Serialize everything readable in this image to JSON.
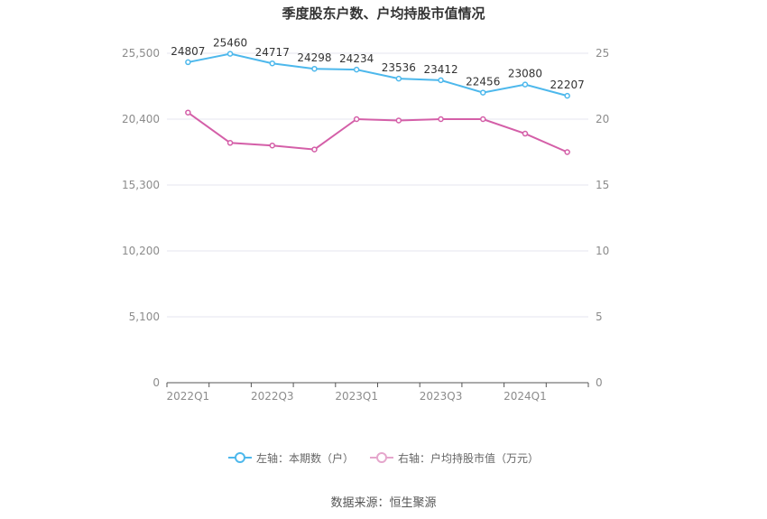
{
  "chart_data": {
    "type": "line",
    "title": "季度股东户数、户均持股市值情况",
    "categories": [
      "2022Q1",
      "2022Q2",
      "2022Q3",
      "2022Q4",
      "2023Q1",
      "2023Q2",
      "2023Q3",
      "2023Q4",
      "2024Q1",
      "2024Q2"
    ],
    "x_tick_labels": [
      "2022Q1",
      "2022Q3",
      "2023Q1",
      "2023Q3",
      "2024Q1"
    ],
    "left_axis": {
      "ticks": [
        "0",
        "5,100",
        "10,200",
        "15,300",
        "20,400",
        "25,500"
      ],
      "ylim": [
        0,
        25500
      ]
    },
    "right_axis": {
      "ticks": [
        "0",
        "5",
        "10",
        "15",
        "20",
        "25"
      ],
      "ylim": [
        0,
        25
      ]
    },
    "series": [
      {
        "name": "左轴：本期数（户）",
        "axis": "left",
        "color": "#4db8ec",
        "values": [
          24807,
          25460,
          24717,
          24298,
          24234,
          23536,
          23412,
          22456,
          23080,
          22207
        ],
        "labels": [
          "24807",
          "25460",
          "24717",
          "24298",
          "24234",
          "23536",
          "23412",
          "22456",
          "23080",
          "22207"
        ]
      },
      {
        "name": "右轴：户均持股市值（万元）",
        "axis": "right",
        "color": "#d45fa8",
        "values": [
          20.5,
          18.2,
          18.0,
          17.7,
          20.0,
          19.9,
          20.0,
          20.0,
          18.9,
          17.5
        ]
      }
    ],
    "grid": true,
    "legend_position": "bottom"
  },
  "source": "数据来源：恒生聚源"
}
